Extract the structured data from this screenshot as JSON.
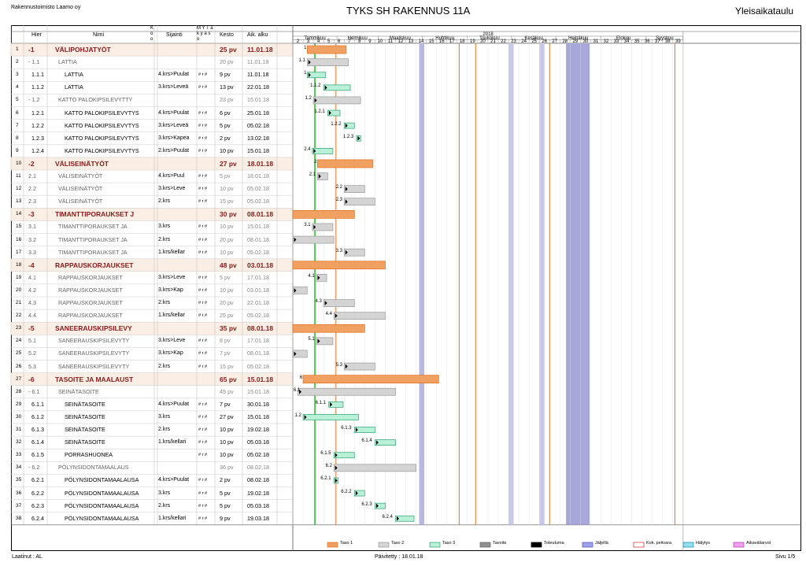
{
  "header": {
    "company": "Rakennustoimisto Laamo oy",
    "title": "TYKS SH RAKENNUS 11A",
    "doc_type": "Yleisaikataulu"
  },
  "columns": {
    "num": "",
    "hier": "Hier",
    "name": "Nimi",
    "ko": "K o o",
    "loc": "Sijainti",
    "mas": "M Y T a k y a s o",
    "dur": "Kesto",
    "start": "Aik. alku"
  },
  "year": "2018",
  "months": [
    "Tammikuu",
    "Helmikuu",
    "Maaliskuu",
    "Huhtikuu",
    "Toukokuu",
    "Kesäkuu",
    "Heinäkuu",
    "Elokuu",
    "Syyskuu"
  ],
  "weeks": [
    "2",
    "3",
    "4",
    "5",
    "6",
    "7",
    "8",
    "9",
    "10",
    "11",
    "12",
    "13",
    "14",
    "15",
    "16",
    "17",
    "18",
    "19",
    "20",
    "21",
    "22",
    "23",
    "24",
    "25",
    "26",
    "27",
    "28",
    "29",
    "30",
    "31",
    "32",
    "33",
    "34",
    "35",
    "36",
    "37",
    "38",
    "39"
  ],
  "rows": [
    {
      "n": "1",
      "hier": "-1",
      "name": "VÄLIPOHJATYÖT",
      "loc": "",
      "mk": "",
      "dur": "25 pv",
      "start": "11.01.18",
      "level": 1,
      "glab": "1",
      "type": "o",
      "bar": [
        1.4,
        5.2
      ]
    },
    {
      "n": "2",
      "hier": "- 1.1",
      "name": "LATTIA",
      "loc": "",
      "mk": "",
      "dur": "20 pv",
      "start": "11.01.18",
      "level": 2,
      "glab": "1.1",
      "type": "g",
      "bar": [
        1.4,
        5.4
      ]
    },
    {
      "n": "3",
      "hier": "1.1.1",
      "name": "LATTIA",
      "loc": "4.krs>Puulat",
      "mk": "# r #",
      "dur": "9 pv",
      "start": "11.01.18",
      "level": 3,
      "glab": "1",
      "type": "c",
      "bar": [
        1.4,
        3.2
      ]
    },
    {
      "n": "4",
      "hier": "1.1.2",
      "name": "LATTIA",
      "loc": "3.krs>Leveä",
      "mk": "# r #",
      "dur": "13 pv",
      "start": "22.01.18",
      "level": 3,
      "glab": "1.1.2",
      "type": "c",
      "bar": [
        3.0,
        5.6
      ]
    },
    {
      "n": "5",
      "hier": "- 1.2",
      "name": "KATTO PALOKIPSILEVYTTY",
      "loc": "",
      "mk": "",
      "dur": "23 pv",
      "start": "15.01.18",
      "level": 2,
      "glab": "1.2",
      "type": "g",
      "bar": [
        2.0,
        6.6
      ]
    },
    {
      "n": "6",
      "hier": "1.2.1",
      "name": "KATTO PALOKIPSILEVYTYS",
      "loc": "4.krs>Puulat",
      "mk": "# r #",
      "dur": "6 pv",
      "start": "25.01.18",
      "level": 3,
      "glab": "1.2.1",
      "type": "c",
      "bar": [
        3.4,
        4.6
      ]
    },
    {
      "n": "7",
      "hier": "1.2.2",
      "name": "KATTO PALOKIPSILEVYTYS",
      "loc": "3.krs>Leveä",
      "mk": "# r #",
      "dur": "5 pv",
      "start": "05.02.18",
      "level": 3,
      "glab": "1.2.2",
      "type": "c",
      "bar": [
        5.0,
        6.0
      ]
    },
    {
      "n": "8",
      "hier": "1.2.3",
      "name": "KATTO PALOKIPSILEVYTYS",
      "loc": "3.krs>Kapea",
      "mk": "# r #",
      "dur": "2 pv",
      "start": "13.02.18",
      "level": 3,
      "glab": "1.2.3",
      "type": "c",
      "bar": [
        6.2,
        6.6
      ]
    },
    {
      "n": "9",
      "hier": "1.2.4",
      "name": "KATTO PALOKIPSILEVYTYS",
      "loc": "2.krs>Puulat",
      "mk": "# r #",
      "dur": "10 pv",
      "start": "15.01.18",
      "level": 3,
      "glab": "2.4",
      "type": "c",
      "bar": [
        1.9,
        3.9
      ]
    },
    {
      "n": "10",
      "hier": "-2",
      "name": "VÄLISEINÄTYÖT",
      "loc": "",
      "mk": "",
      "dur": "27 pv",
      "start": "18.01.18",
      "level": 1,
      "glab": "2",
      "type": "o",
      "bar": [
        2.4,
        7.8
      ]
    },
    {
      "n": "11",
      "hier": "2.1",
      "name": "VÄLISEINÄTYÖT",
      "loc": "4.krs>Puul",
      "mk": "# r #",
      "dur": "5 pv",
      "start": "18.01.18",
      "level": 2,
      "glab": "2.1",
      "type": "g",
      "bar": [
        2.4,
        3.4
      ]
    },
    {
      "n": "12",
      "hier": "2.2",
      "name": "VÄLISEINÄTYÖT",
      "loc": "3.krs>Leve",
      "mk": "# r #",
      "dur": "10 pv",
      "start": "05.02.18",
      "level": 2,
      "glab": "2.2",
      "type": "g",
      "bar": [
        5.0,
        7.0
      ]
    },
    {
      "n": "13",
      "hier": "2.3",
      "name": "VÄLISEINÄTYÖT",
      "loc": "2.krs",
      "mk": "# r #",
      "dur": "15 pv",
      "start": "05.02.18",
      "level": 2,
      "glab": "2.3",
      "type": "g",
      "bar": [
        5.0,
        8.0
      ]
    },
    {
      "n": "14",
      "hier": "-3",
      "name": "TIMANTTIPORAUKSET J",
      "loc": "",
      "mk": "",
      "dur": "30 pv",
      "start": "08.01.18",
      "level": 1,
      "glab": "",
      "type": "o",
      "bar": [
        0.0,
        6.0
      ]
    },
    {
      "n": "15",
      "hier": "3.1",
      "name": "TIMANTTIPORAUKSET JA",
      "loc": "3.krs",
      "mk": "# r #",
      "dur": "10 pv",
      "start": "15.01.18",
      "level": 2,
      "glab": "3.1",
      "type": "g",
      "bar": [
        1.9,
        3.9
      ]
    },
    {
      "n": "16",
      "hier": "3.2",
      "name": "TIMANTTIPORAUKSET JA",
      "loc": "2.krs",
      "mk": "# r #",
      "dur": "20 pv",
      "start": "08.01.18",
      "level": 2,
      "glab": "",
      "type": "g",
      "bar": [
        0.0,
        4.0
      ]
    },
    {
      "n": "17",
      "hier": "3.3",
      "name": "TIMANTTIPORAUKSET JA",
      "loc": "1.krs/kellar",
      "mk": "# r #",
      "dur": "10 pv",
      "start": "05.02.18",
      "level": 2,
      "glab": "3.3",
      "type": "g",
      "bar": [
        5.0,
        7.0
      ]
    },
    {
      "n": "18",
      "hier": "-4",
      "name": "RAPPAUSKORJAUKSET",
      "loc": "",
      "mk": "",
      "dur": "48 pv",
      "start": "03.01.18",
      "level": 1,
      "glab": "",
      "type": "o",
      "bar": [
        0.0,
        9.0
      ]
    },
    {
      "n": "19",
      "hier": "4.1",
      "name": "RAPPAUSKORJAUKSET",
      "loc": "3.krs>Leve",
      "mk": "# r #",
      "dur": "5 pv",
      "start": "17.01.18",
      "level": 2,
      "glab": "4.1",
      "type": "g",
      "bar": [
        2.3,
        3.3
      ]
    },
    {
      "n": "20",
      "hier": "4.2",
      "name": "RAPPAUSKORJAUKSET",
      "loc": "3.krs>Kap",
      "mk": "# r #",
      "dur": "10 pv",
      "start": "03.01.18",
      "level": 2,
      "glab": "",
      "type": "g",
      "bar": [
        0.0,
        1.4
      ]
    },
    {
      "n": "21",
      "hier": "4.3",
      "name": "RAPPAUSKORJAUKSET",
      "loc": "2.krs",
      "mk": "# r #",
      "dur": "20 pv",
      "start": "22.01.18",
      "level": 2,
      "glab": "4.3",
      "type": "g",
      "bar": [
        3.0,
        6.0
      ]
    },
    {
      "n": "22",
      "hier": "4.4",
      "name": "RAPPAUSKORJAUKSET",
      "loc": "1.krs/kellar",
      "mk": "# r #",
      "dur": "25 pv",
      "start": "05.02.18",
      "level": 2,
      "glab": "4.4",
      "type": "g",
      "bar": [
        4.0,
        9.0
      ]
    },
    {
      "n": "23",
      "hier": "-5",
      "name": "SANEERAUSKIPSILEVY",
      "loc": "",
      "mk": "",
      "dur": "35 pv",
      "start": "08.01.18",
      "level": 1,
      "glab": "",
      "type": "o",
      "bar": [
        0.0,
        7.0
      ]
    },
    {
      "n": "24",
      "hier": "5.1",
      "name": "SANEERAUSKIPSILEVYTY",
      "loc": "3.krs>Leve",
      "mk": "# r #",
      "dur": "8 pv",
      "start": "17.01.18",
      "level": 2,
      "glab": "5.1",
      "type": "g",
      "bar": [
        2.3,
        3.9
      ]
    },
    {
      "n": "25",
      "hier": "5.2",
      "name": "SANEERAUSKIPSILEVYTY",
      "loc": "3.krs>Kap",
      "mk": "# r #",
      "dur": "7 pv",
      "start": "08.01.18",
      "level": 2,
      "glab": "",
      "type": "g",
      "bar": [
        0.0,
        1.4
      ]
    },
    {
      "n": "26",
      "hier": "5.3",
      "name": "SANEERAUSKIPSILEVYTY",
      "loc": "2.krs",
      "mk": "# r #",
      "dur": "15 pv",
      "start": "05.02.18",
      "level": 2,
      "glab": "5.3",
      "type": "g",
      "bar": [
        5.0,
        8.0
      ]
    },
    {
      "n": "27",
      "hier": "-6",
      "name": "TASOITE JA MAALAUST",
      "loc": "",
      "mk": "",
      "dur": "65 pv",
      "start": "15.01.18",
      "level": 1,
      "glab": "6",
      "type": "o",
      "bar": [
        1.0,
        14.2
      ]
    },
    {
      "n": "28",
      "hier": "- 6.1",
      "name": "SEINÄTASOITE",
      "loc": "",
      "mk": "",
      "dur": "45 pv",
      "start": "15.01.18",
      "level": 2,
      "glab": "6.1",
      "type": "g",
      "bar": [
        0.5,
        10.0
      ]
    },
    {
      "n": "29",
      "hier": "6.1.1",
      "name": "SEINÄTASOITE",
      "loc": "4.krs>Puulat",
      "mk": "# r #",
      "dur": "7 pv",
      "start": "30.01.18",
      "level": 3,
      "glab": "6.1.1",
      "type": "c",
      "bar": [
        3.5,
        4.9
      ]
    },
    {
      "n": "30",
      "hier": "6.1.2",
      "name": "SEINÄTASOITE",
      "loc": "3.krs",
      "mk": "# r #",
      "dur": "27 pv",
      "start": "15.01.18",
      "level": 3,
      "glab": "1.2",
      "type": "c",
      "bar": [
        1.0,
        6.4
      ]
    },
    {
      "n": "31",
      "hier": "6.1.3",
      "name": "SEINÄTASOITE",
      "loc": "2.krs",
      "mk": "# r #",
      "dur": "10 pv",
      "start": "19.02.18",
      "level": 3,
      "glab": "6.1.3",
      "type": "c",
      "bar": [
        6.0,
        8.0
      ]
    },
    {
      "n": "32",
      "hier": "6.1.4",
      "name": "SEINÄTASOITE",
      "loc": "1.krs/kellari",
      "mk": "# r #",
      "dur": "10 pv",
      "start": "05.03.18",
      "level": 3,
      "glab": "6.1.4",
      "type": "c",
      "bar": [
        8.0,
        10.0
      ]
    },
    {
      "n": "33",
      "hier": "6.1.5",
      "name": "PORRASHUONEA",
      "loc": "",
      "mk": "# r #",
      "dur": "10 pv",
      "start": "05.02.18",
      "level": 3,
      "glab": "6.1.5",
      "type": "c",
      "bar": [
        4.0,
        6.0
      ]
    },
    {
      "n": "34",
      "hier": "- 6.2",
      "name": "PÖLYNSIDONTAMAALAUS",
      "loc": "",
      "mk": "",
      "dur": "36 pv",
      "start": "08.02.18",
      "level": 2,
      "glab": "6.2",
      "type": "g",
      "bar": [
        4.0,
        12.0
      ]
    },
    {
      "n": "35",
      "hier": "6.2.1",
      "name": "PÖLYNSIDONTAMAALAUSA",
      "loc": "4.krs>Puulat",
      "mk": "# r #",
      "dur": "2 pv",
      "start": "08.02.18",
      "level": 3,
      "glab": "6.2.1",
      "type": "c",
      "bar": [
        4.0,
        4.4
      ]
    },
    {
      "n": "36",
      "hier": "6.2.2",
      "name": "PÖLYNSIDONTAMAALAUSA",
      "loc": "3.krs",
      "mk": "# r #",
      "dur": "5 pv",
      "start": "19.02.18",
      "level": 3,
      "glab": "6.2.2",
      "type": "c",
      "bar": [
        6.0,
        7.0
      ]
    },
    {
      "n": "37",
      "hier": "6.2.3",
      "name": "PÖLYNSIDONTAMAALAUSA",
      "loc": "2.krs",
      "mk": "# r #",
      "dur": "5 pv",
      "start": "05.03.18",
      "level": 3,
      "glab": "6.2.3",
      "type": "c",
      "bar": [
        8.0,
        9.0
      ]
    },
    {
      "n": "38",
      "hier": "6.2.4",
      "name": "PÖLYNSIDONTAMAALAUSA",
      "loc": "1.krs/kellari",
      "mk": "# r #",
      "dur": "9 pv",
      "start": "19.03.18",
      "level": 3,
      "glab": "6.2.4",
      "type": "c",
      "bar": [
        10.0,
        11.8
      ]
    }
  ],
  "legend": [
    {
      "label": "Taso 1",
      "color": "#f0a060",
      "border": "#e07020"
    },
    {
      "label": "Taso 2",
      "color": "#d4d4d4",
      "border": "#999999"
    },
    {
      "label": "Taso 3",
      "color": "#b8f0d8",
      "border": "#30a070"
    },
    {
      "label": "Tavoite",
      "color": "#909090",
      "border": "#606060"
    },
    {
      "label": "Toteutuma",
      "color": "#000000",
      "border": "#000000"
    },
    {
      "label": "Jäljellä",
      "color": "#a0a0e8",
      "border": "#5050b0"
    },
    {
      "label": "Kok. peitvara",
      "color": "#ffffff",
      "border": "#d02020"
    },
    {
      "label": "Hälytys",
      "color": "#90e0f0",
      "border": "#2080a0"
    },
    {
      "label": "Aikaväliarvot",
      "color": "#f0a0f0",
      "border": "#a040a0"
    }
  ],
  "footer": {
    "left": "Laatinut : AL",
    "middle": "Päivitetty : 18.01.18",
    "right": "Sivu 1/5"
  }
}
